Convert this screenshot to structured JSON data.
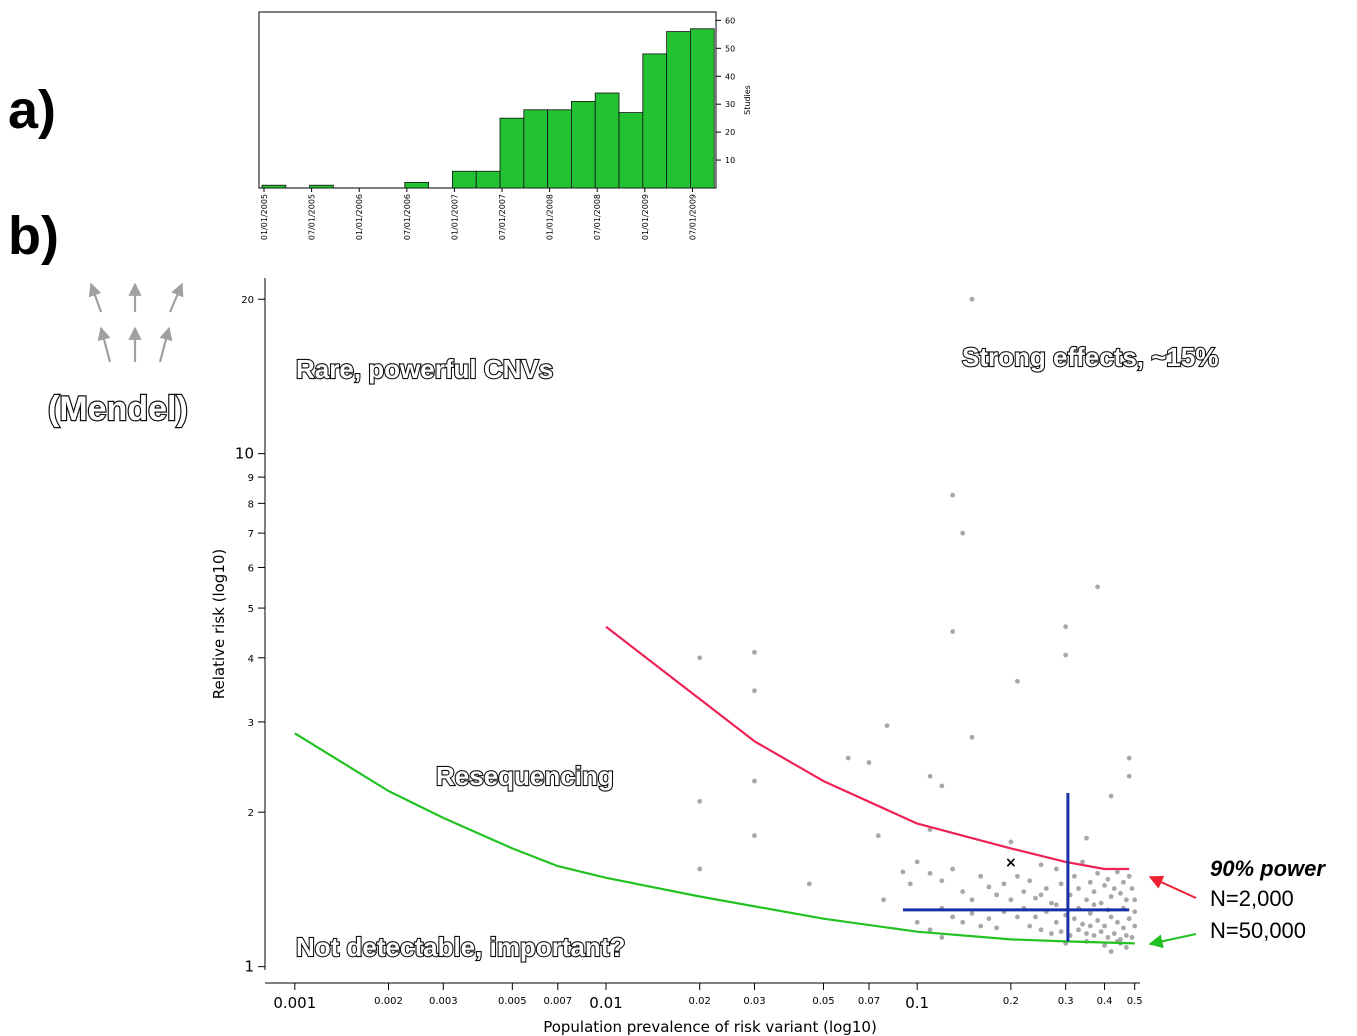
{
  "panels": {
    "a": "a)",
    "b": "b)"
  },
  "colors": {
    "bar": "#22c232",
    "red": "#ee2255",
    "green": "#22c222",
    "blue": "#1530a8",
    "dot": "#a8a8a8",
    "arrow_gray": "#a0a0a0"
  },
  "annotations": {
    "mendel": "(Mendel)",
    "rare": "Rare, powerful CNVs",
    "strong": "Strong effects, ~15%",
    "reseq": "Resequencing",
    "notdetect": "Not detectable, important?"
  },
  "legend": {
    "title": "90% power",
    "n1": "N=2,000",
    "n2": "N=50,000"
  },
  "chart_data": [
    {
      "type": "bar",
      "categories": [
        "01/01/2005",
        "04/01/2005",
        "07/01/2005",
        "10/01/2005",
        "01/01/2006",
        "04/01/2006",
        "07/01/2006",
        "10/01/2006",
        "01/01/2007",
        "04/01/2007",
        "07/01/2007",
        "10/01/2007",
        "01/01/2008",
        "04/01/2008",
        "07/01/2008",
        "10/01/2008",
        "01/01/2009",
        "04/01/2009",
        "07/01/2009"
      ],
      "values": [
        1,
        0,
        1,
        0,
        0,
        0,
        2,
        0,
        6,
        6,
        25,
        28,
        28,
        31,
        34,
        27,
        48,
        56,
        57
      ],
      "x_tick_labels": [
        "01/01/2005",
        "07/01/2005",
        "01/01/2006",
        "07/01/2006",
        "01/01/2007",
        "07/01/2007",
        "01/01/2008",
        "07/01/2008",
        "01/01/2009",
        "07/01/2009"
      ],
      "ylabel": "Studies",
      "y_ticks": [
        10,
        20,
        30,
        40,
        50,
        60
      ],
      "ylim": [
        0,
        63
      ]
    },
    {
      "type": "scatter",
      "xlabel": "Population prevalence of risk variant (log10)",
      "ylabel": "Relative risk (log10)",
      "x_scale": "log",
      "y_scale": "log",
      "xlim": [
        0.00082,
        0.52
      ],
      "ylim": [
        0.985,
        22
      ],
      "x_ticks": [
        0.001,
        0.002,
        0.003,
        0.005,
        0.007,
        0.01,
        0.02,
        0.03,
        0.05,
        0.07,
        0.1,
        0.2,
        0.3,
        0.4,
        0.5
      ],
      "x_tick_labels": [
        "0.001",
        "0.002",
        "0.003",
        "0.005",
        "0.007",
        "0.01",
        "0.02",
        "0.03",
        "0.05",
        "0.07",
        "0.1",
        "0.2",
        "0.3",
        "0.4",
        "0.5"
      ],
      "y_ticks": [
        1,
        2,
        3,
        4,
        5,
        6,
        7,
        8,
        9,
        10,
        20
      ],
      "y_tick_labels": [
        "1",
        "2",
        "3",
        "4",
        "5",
        "6",
        "7",
        "8",
        "9",
        "10",
        "20"
      ],
      "lines": [
        {
          "name": "N=2,000",
          "color": "#ee2255",
          "points": [
            [
              0.01,
              4.6
            ],
            [
              0.03,
              2.75
            ],
            [
              0.05,
              2.3
            ],
            [
              0.1,
              1.9
            ],
            [
              0.2,
              1.7
            ],
            [
              0.3,
              1.6
            ],
            [
              0.4,
              1.55
            ],
            [
              0.48,
              1.55
            ]
          ]
        },
        {
          "name": "N=50,000",
          "color": "#22c222",
          "points": [
            [
              0.001,
              2.85
            ],
            [
              0.002,
              2.2
            ],
            [
              0.003,
              1.95
            ],
            [
              0.005,
              1.7
            ],
            [
              0.007,
              1.57
            ],
            [
              0.01,
              1.49
            ],
            [
              0.02,
              1.37
            ],
            [
              0.05,
              1.24
            ],
            [
              0.1,
              1.17
            ],
            [
              0.2,
              1.13
            ],
            [
              0.3,
              1.12
            ],
            [
              0.5,
              1.11
            ]
          ]
        }
      ],
      "crosshair": {
        "color": "#1530a8",
        "x": 0.305,
        "y": 1.29,
        "x_range": [
          0.09,
          0.48
        ],
        "y_range": [
          1.12,
          2.18
        ]
      },
      "marker": {
        "x": 0.2,
        "y": 1.6,
        "label": "×"
      },
      "points": [
        [
          0.02,
          4.0
        ],
        [
          0.03,
          4.1
        ],
        [
          0.03,
          3.45
        ],
        [
          0.02,
          2.1
        ],
        [
          0.03,
          2.3
        ],
        [
          0.03,
          1.8
        ],
        [
          0.02,
          1.55
        ],
        [
          0.045,
          1.45
        ],
        [
          0.06,
          2.55
        ],
        [
          0.07,
          2.5
        ],
        [
          0.08,
          2.95
        ],
        [
          0.075,
          1.8
        ],
        [
          0.078,
          1.35
        ],
        [
          0.11,
          2.35
        ],
        [
          0.12,
          2.25
        ],
        [
          0.11,
          1.85
        ],
        [
          0.13,
          8.3
        ],
        [
          0.14,
          7.0
        ],
        [
          0.15,
          20.0
        ],
        [
          0.13,
          4.5
        ],
        [
          0.15,
          2.8
        ],
        [
          0.2,
          1.75
        ],
        [
          0.21,
          3.6
        ],
        [
          0.3,
          4.6
        ],
        [
          0.3,
          4.05
        ],
        [
          0.38,
          5.5
        ],
        [
          0.42,
          2.15
        ],
        [
          0.48,
          2.55
        ],
        [
          0.48,
          2.35
        ],
        [
          0.35,
          1.78
        ],
        [
          0.09,
          1.53
        ],
        [
          0.095,
          1.45
        ],
        [
          0.1,
          1.6
        ],
        [
          0.11,
          1.52
        ],
        [
          0.12,
          1.47
        ],
        [
          0.13,
          1.55
        ],
        [
          0.14,
          1.4
        ],
        [
          0.15,
          1.35
        ],
        [
          0.16,
          1.5
        ],
        [
          0.17,
          1.43
        ],
        [
          0.18,
          1.38
        ],
        [
          0.19,
          1.45
        ],
        [
          0.21,
          1.5
        ],
        [
          0.22,
          1.4
        ],
        [
          0.23,
          1.47
        ],
        [
          0.24,
          1.36
        ],
        [
          0.25,
          1.58
        ],
        [
          0.26,
          1.42
        ],
        [
          0.27,
          1.33
        ],
        [
          0.28,
          1.55
        ],
        [
          0.29,
          1.45
        ],
        [
          0.31,
          1.38
        ],
        [
          0.32,
          1.5
        ],
        [
          0.33,
          1.42
        ],
        [
          0.34,
          1.6
        ],
        [
          0.35,
          1.35
        ],
        [
          0.36,
          1.46
        ],
        [
          0.37,
          1.4
        ],
        [
          0.38,
          1.52
        ],
        [
          0.39,
          1.33
        ],
        [
          0.4,
          1.44
        ],
        [
          0.41,
          1.48
        ],
        [
          0.42,
          1.37
        ],
        [
          0.43,
          1.42
        ],
        [
          0.44,
          1.53
        ],
        [
          0.45,
          1.39
        ],
        [
          0.46,
          1.46
        ],
        [
          0.47,
          1.35
        ],
        [
          0.48,
          1.5
        ],
        [
          0.49,
          1.42
        ],
        [
          0.2,
          1.35
        ],
        [
          0.22,
          1.3
        ],
        [
          0.24,
          1.25
        ],
        [
          0.26,
          1.28
        ],
        [
          0.28,
          1.22
        ],
        [
          0.3,
          1.26
        ],
        [
          0.32,
          1.24
        ],
        [
          0.34,
          1.21
        ],
        [
          0.36,
          1.27
        ],
        [
          0.38,
          1.23
        ],
        [
          0.4,
          1.2
        ],
        [
          0.42,
          1.25
        ],
        [
          0.44,
          1.22
        ],
        [
          0.46,
          1.19
        ],
        [
          0.48,
          1.24
        ],
        [
          0.25,
          1.18
        ],
        [
          0.27,
          1.16
        ],
        [
          0.29,
          1.17
        ],
        [
          0.31,
          1.15
        ],
        [
          0.33,
          1.18
        ],
        [
          0.35,
          1.16
        ],
        [
          0.37,
          1.15
        ],
        [
          0.39,
          1.17
        ],
        [
          0.41,
          1.14
        ],
        [
          0.43,
          1.16
        ],
        [
          0.45,
          1.13
        ],
        [
          0.47,
          1.15
        ],
        [
          0.49,
          1.14
        ],
        [
          0.3,
          1.11
        ],
        [
          0.35,
          1.12
        ],
        [
          0.4,
          1.1
        ],
        [
          0.45,
          1.11
        ],
        [
          0.42,
          1.07
        ],
        [
          0.47,
          1.09
        ],
        [
          0.12,
          1.3
        ],
        [
          0.13,
          1.25
        ],
        [
          0.14,
          1.22
        ],
        [
          0.15,
          1.27
        ],
        [
          0.16,
          1.2
        ],
        [
          0.17,
          1.24
        ],
        [
          0.18,
          1.19
        ],
        [
          0.19,
          1.28
        ],
        [
          0.1,
          1.22
        ],
        [
          0.11,
          1.18
        ],
        [
          0.12,
          1.14
        ],
        [
          0.25,
          1.38
        ],
        [
          0.28,
          1.32
        ],
        [
          0.33,
          1.3
        ],
        [
          0.37,
          1.32
        ],
        [
          0.41,
          1.29
        ],
        [
          0.46,
          1.3
        ],
        [
          0.23,
          1.2
        ],
        [
          0.21,
          1.25
        ],
        [
          0.36,
          1.2
        ],
        [
          0.44,
          1.12
        ],
        [
          0.5,
          1.2
        ],
        [
          0.5,
          1.28
        ],
        [
          0.5,
          1.35
        ]
      ]
    }
  ]
}
